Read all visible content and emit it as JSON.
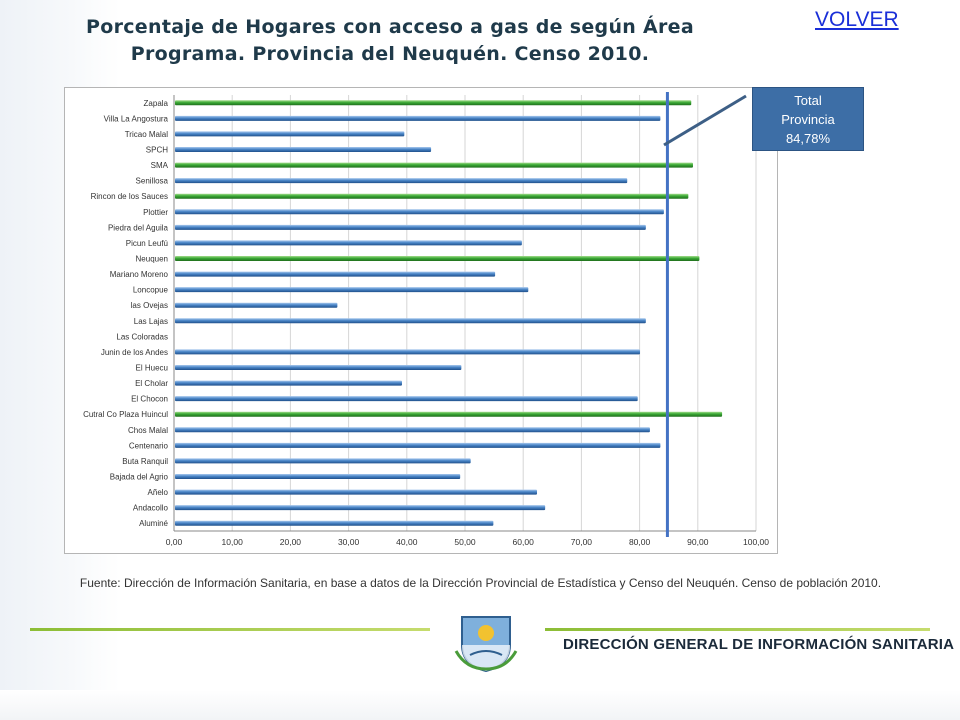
{
  "header": {
    "title": "Porcentaje  de Hogares con acceso a gas de  según Área\nPrograma. Provincia del Neuquén. Censo 2010.",
    "volver_label": "VOLVER"
  },
  "callout": {
    "text": "Total\nProvincia\n84,78%"
  },
  "source": {
    "text": "Fuente: Dirección de Información Sanitaria, en base a datos de la Dirección Provincial de Estadística y Censo del Neuquén. Censo de población 2010."
  },
  "footer": {
    "label": "DIRECCIÓN GENERAL DE INFORMACIÓN SANITARIA",
    "seal_icon": "neuquen-province-seal-icon"
  },
  "colors": {
    "bar_blue": "#4a86c8",
    "bar_green": "#3aa935",
    "reference_line": "#4472c4",
    "callout_bg": "#3d6ea6",
    "accent_line": "#8cbd36"
  },
  "chart_data": {
    "type": "bar",
    "orientation": "horizontal",
    "title": "",
    "xlabel": "",
    "ylabel": "",
    "xlim": [
      0,
      100
    ],
    "x_ticks": [
      "0,00",
      "10,00",
      "20,00",
      "30,00",
      "40,00",
      "50,00",
      "60,00",
      "70,00",
      "80,00",
      "90,00",
      "100,00"
    ],
    "grid": true,
    "reference_value": 84.78,
    "categories": [
      "Zapala",
      "Villa La Angostura",
      "Tricao Malal",
      "SPCH",
      "SMA",
      "Senillosa",
      "Rincon de los Sauces",
      "Plottier",
      "Piedra del Aguila",
      "Picun Leufú",
      "Neuquen",
      "Mariano Moreno",
      "Loncopue",
      "las Ovejas",
      "Las Lajas",
      "Las Coloradas",
      "Junin de los Andes",
      "El Huecu",
      "El Cholar",
      "El Chocon",
      "Cutral Co Plaza Huincul",
      "Chos Malal",
      "Centenario",
      "Buta Ranquil",
      "Bajada del Agrio",
      "Añelo",
      "Andacollo",
      "Aluminé"
    ],
    "values": [
      88.7,
      83.4,
      39.4,
      44.0,
      89.0,
      77.7,
      88.2,
      84.0,
      80.9,
      59.6,
      90.1,
      55.0,
      60.7,
      27.9,
      80.9,
      0,
      79.9,
      49.2,
      39.0,
      79.5,
      94.0,
      81.6,
      83.4,
      50.8,
      49.0,
      62.2,
      63.6,
      54.7
    ],
    "highlight": [
      true,
      false,
      false,
      false,
      true,
      false,
      true,
      false,
      false,
      false,
      true,
      false,
      false,
      false,
      false,
      false,
      false,
      false,
      false,
      false,
      true,
      false,
      false,
      false,
      false,
      false,
      false,
      false
    ]
  }
}
